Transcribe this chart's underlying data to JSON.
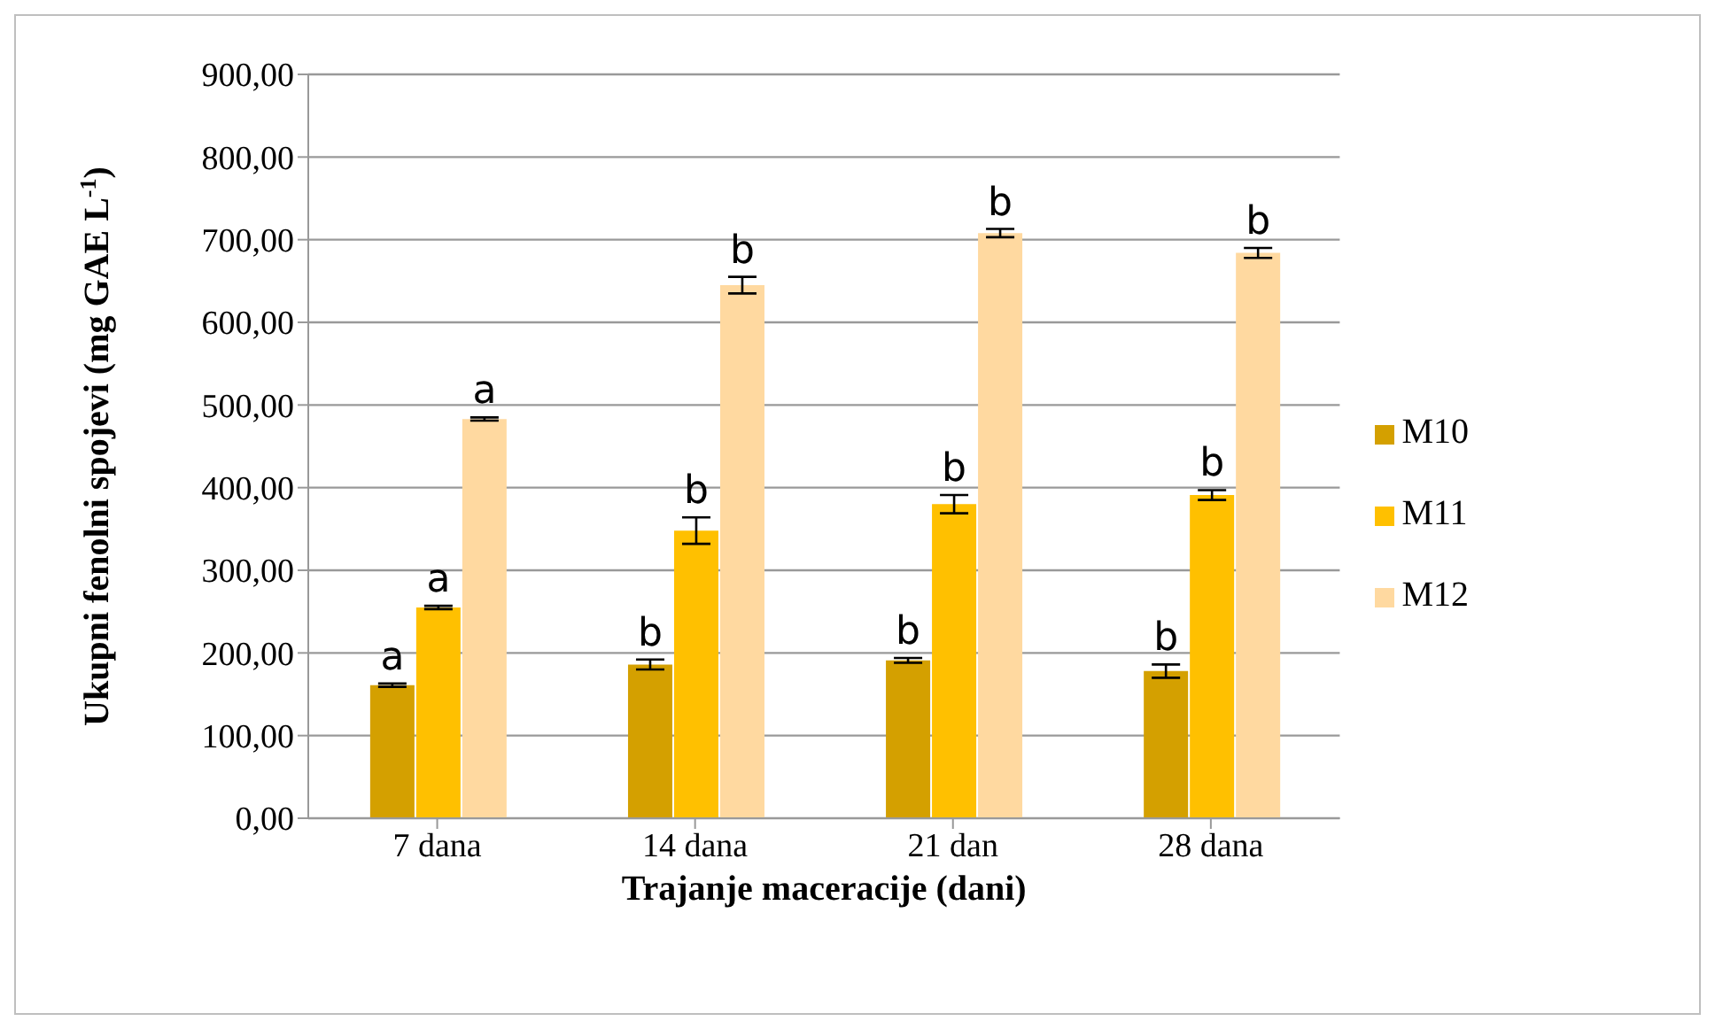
{
  "chart_data": {
    "type": "bar",
    "xlabel": "Trajanje maceracije (dani)",
    "ylabel": "Ukupni fenolni spojevi (mg GAE L$^{-1}$)",
    "categories": [
      "7 dana",
      "14 dana",
      "21 dan",
      "28 dana"
    ],
    "series": [
      {
        "name": "M10",
        "color": "#d4a000",
        "values": [
          161,
          186,
          191,
          178
        ],
        "errors": [
          2,
          6,
          3,
          8
        ],
        "value_labels": [
          "a",
          "b",
          "b",
          "b"
        ]
      },
      {
        "name": "M11",
        "color": "#ffc000",
        "values": [
          255,
          348,
          380,
          391
        ],
        "errors": [
          2,
          16,
          11,
          6
        ],
        "value_labels": [
          "a",
          "b",
          "b",
          "b"
        ]
      },
      {
        "name": "M12",
        "color": "#ffd9a0",
        "values": [
          483,
          645,
          708,
          684
        ],
        "errors": [
          2,
          10,
          5,
          6
        ],
        "value_labels": [
          "a",
          "b",
          "b",
          "b"
        ]
      }
    ],
    "ylim": [
      0,
      900
    ],
    "yticks": [
      {
        "value": 0,
        "label": "0,00"
      },
      {
        "value": 100,
        "label": "100,00"
      },
      {
        "value": 200,
        "label": "200,00"
      },
      {
        "value": 300,
        "label": "300,00"
      },
      {
        "value": 400,
        "label": "400,00"
      },
      {
        "value": 500,
        "label": "500,00"
      },
      {
        "value": 600,
        "label": "600,00"
      },
      {
        "value": 700,
        "label": "700,00"
      },
      {
        "value": 800,
        "label": "800,00"
      },
      {
        "value": 900,
        "label": "900,00"
      }
    ],
    "grid": "y",
    "legend": "right"
  }
}
